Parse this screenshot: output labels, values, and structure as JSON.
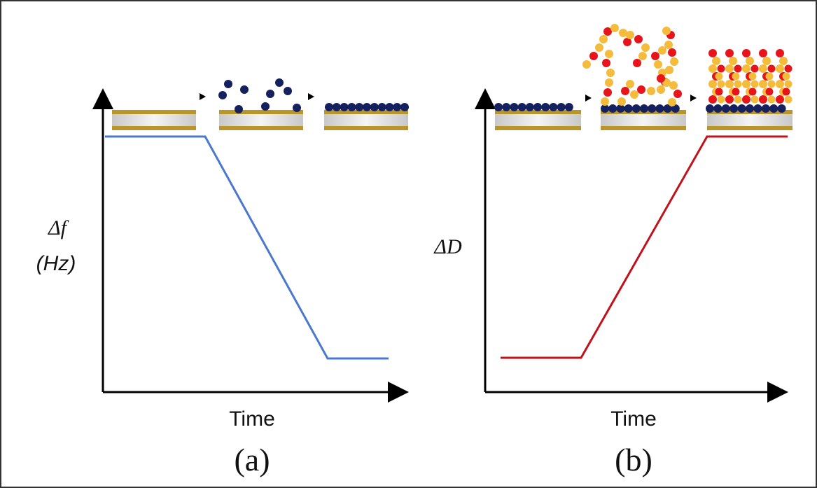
{
  "panels": [
    {
      "y_label": [
        "Δf",
        "(Hz)"
      ],
      "x_label": "Time",
      "caption": "(a)"
    },
    {
      "y_label": [
        "ΔD"
      ],
      "x_label": "Time",
      "caption": "(b)"
    }
  ]
}
